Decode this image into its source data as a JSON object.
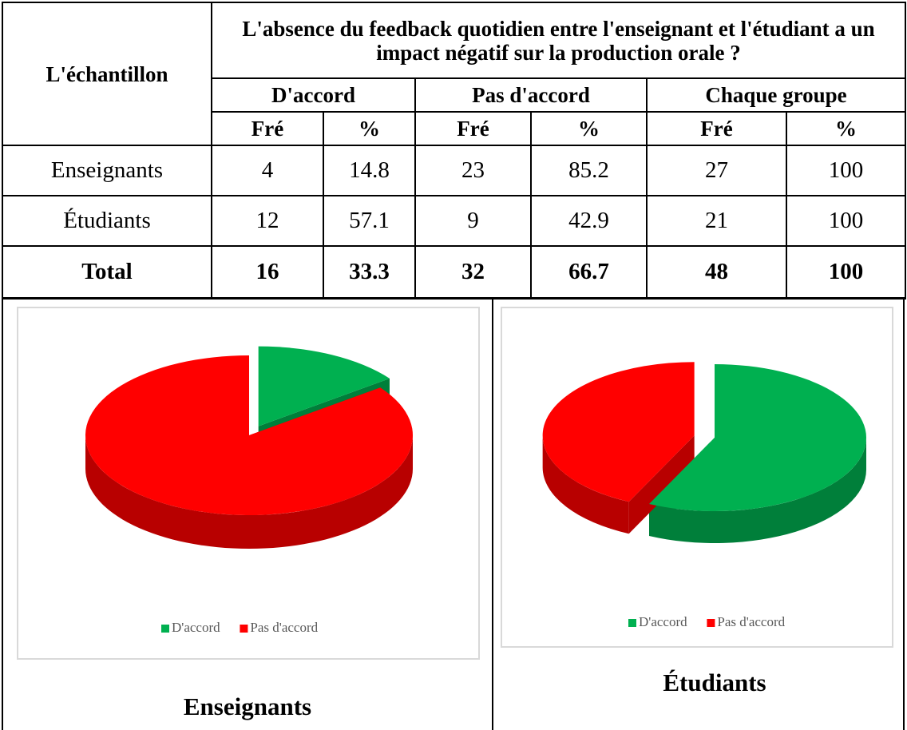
{
  "table": {
    "header": {
      "sample": "L'échantillon",
      "question": "L'absence du feedback quotidien entre l'enseignant et l'étudiant a un impact négatif sur la production orale ?",
      "groups": [
        "D'accord",
        "Pas d'accord",
        "Chaque groupe"
      ],
      "subheaders": [
        "Fré",
        "%",
        "Fré",
        "%",
        "Fré",
        "%"
      ]
    },
    "rows": [
      [
        "Enseignants",
        4,
        14.8,
        23,
        85.2,
        27,
        100
      ],
      [
        "Étudiants",
        12,
        57.1,
        9,
        42.9,
        21,
        100
      ]
    ],
    "total": [
      "Total",
      16,
      33.3,
      32,
      66.7,
      48,
      100
    ]
  },
  "chart_data": [
    {
      "type": "pie",
      "title": "Enseignants",
      "categories": [
        "D'accord",
        "Pas d'accord"
      ],
      "values": [
        14.8,
        85.2
      ],
      "colors": [
        "#00b050",
        "#ff0000"
      ],
      "exploded": 0
    },
    {
      "type": "pie",
      "title": "Étudiants",
      "categories": [
        "D'accord",
        "Pas d'accord"
      ],
      "values": [
        57.1,
        42.9
      ],
      "colors": [
        "#00b050",
        "#ff0000"
      ],
      "exploded": 1
    }
  ]
}
